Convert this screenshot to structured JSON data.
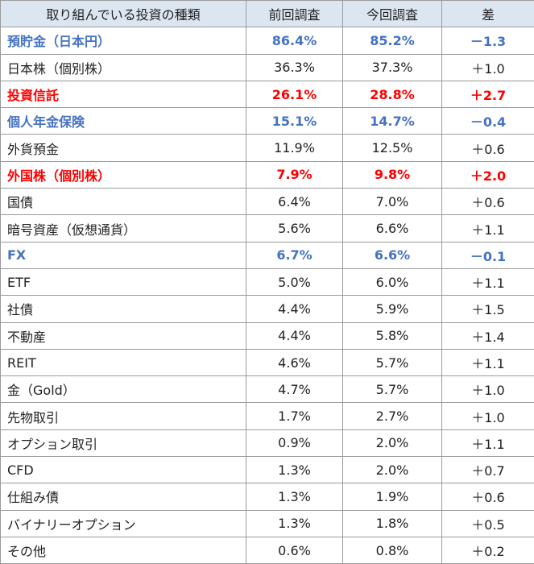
{
  "table": {
    "header": [
      "取り組んでいる投資の種類",
      "前回調査",
      "今回調査",
      "差"
    ],
    "rows": [
      {
        "cells": [
          "預貯金（日本円）",
          "86.4%",
          "85.2%",
          "－1.3"
        ],
        "color": "#4472c4"
      },
      {
        "cells": [
          "日本株（個別株）",
          "36.3%",
          "37.3%",
          "＋1.0"
        ]
      },
      {
        "cells": [
          "投資信託",
          "26.1%",
          "28.8%",
          "＋2.7"
        ],
        "color": "#ff0000"
      },
      {
        "cells": [
          "個人年金保険",
          "15.1%",
          "14.7%",
          "－0.4"
        ],
        "color": "#4472c4"
      },
      {
        "cells": [
          "外貨預金",
          "11.9%",
          "12.5%",
          "＋0.6"
        ]
      },
      {
        "cells": [
          "外国株（個別株）",
          "7.9%",
          "9.8%",
          "＋2.0"
        ],
        "color": "#ff0000"
      },
      {
        "cells": [
          "国債",
          "6.4%",
          "7.0%",
          "＋0.6"
        ]
      },
      {
        "cells": [
          "暗号資産（仮想通貨）",
          "5.6%",
          "6.6%",
          "＋1.1"
        ]
      },
      {
        "cells": [
          "FX",
          "6.7%",
          "6.6%",
          "－0.1"
        ],
        "color": "#4472c4"
      },
      {
        "cells": [
          "ETF",
          "5.0%",
          "6.0%",
          "＋1.1"
        ]
      },
      {
        "cells": [
          "社債",
          "4.4%",
          "5.9%",
          "＋1.5"
        ]
      },
      {
        "cells": [
          "不動産",
          "4.4%",
          "5.8%",
          "＋1.4"
        ]
      },
      {
        "cells": [
          "REIT",
          "4.6%",
          "5.7%",
          "＋1.1"
        ]
      },
      {
        "cells": [
          "金（Gold）",
          "4.7%",
          "5.7%",
          "＋1.0"
        ]
      },
      {
        "cells": [
          "先物取引",
          "1.7%",
          "2.7%",
          "＋1.0"
        ]
      },
      {
        "cells": [
          "オプション取引",
          "0.9%",
          "2.0%",
          "＋1.1"
        ]
      },
      {
        "cells": [
          "CFD",
          "1.3%",
          "2.0%",
          "＋0.7"
        ]
      },
      {
        "cells": [
          "仕組み債",
          "1.3%",
          "1.9%",
          "＋0.6"
        ]
      },
      {
        "cells": [
          "バイナリーオプション",
          "1.3%",
          "1.8%",
          "＋0.5"
        ]
      },
      {
        "cells": [
          "その他",
          "0.6%",
          "0.8%",
          "＋0.2"
        ]
      }
    ]
  }
}
